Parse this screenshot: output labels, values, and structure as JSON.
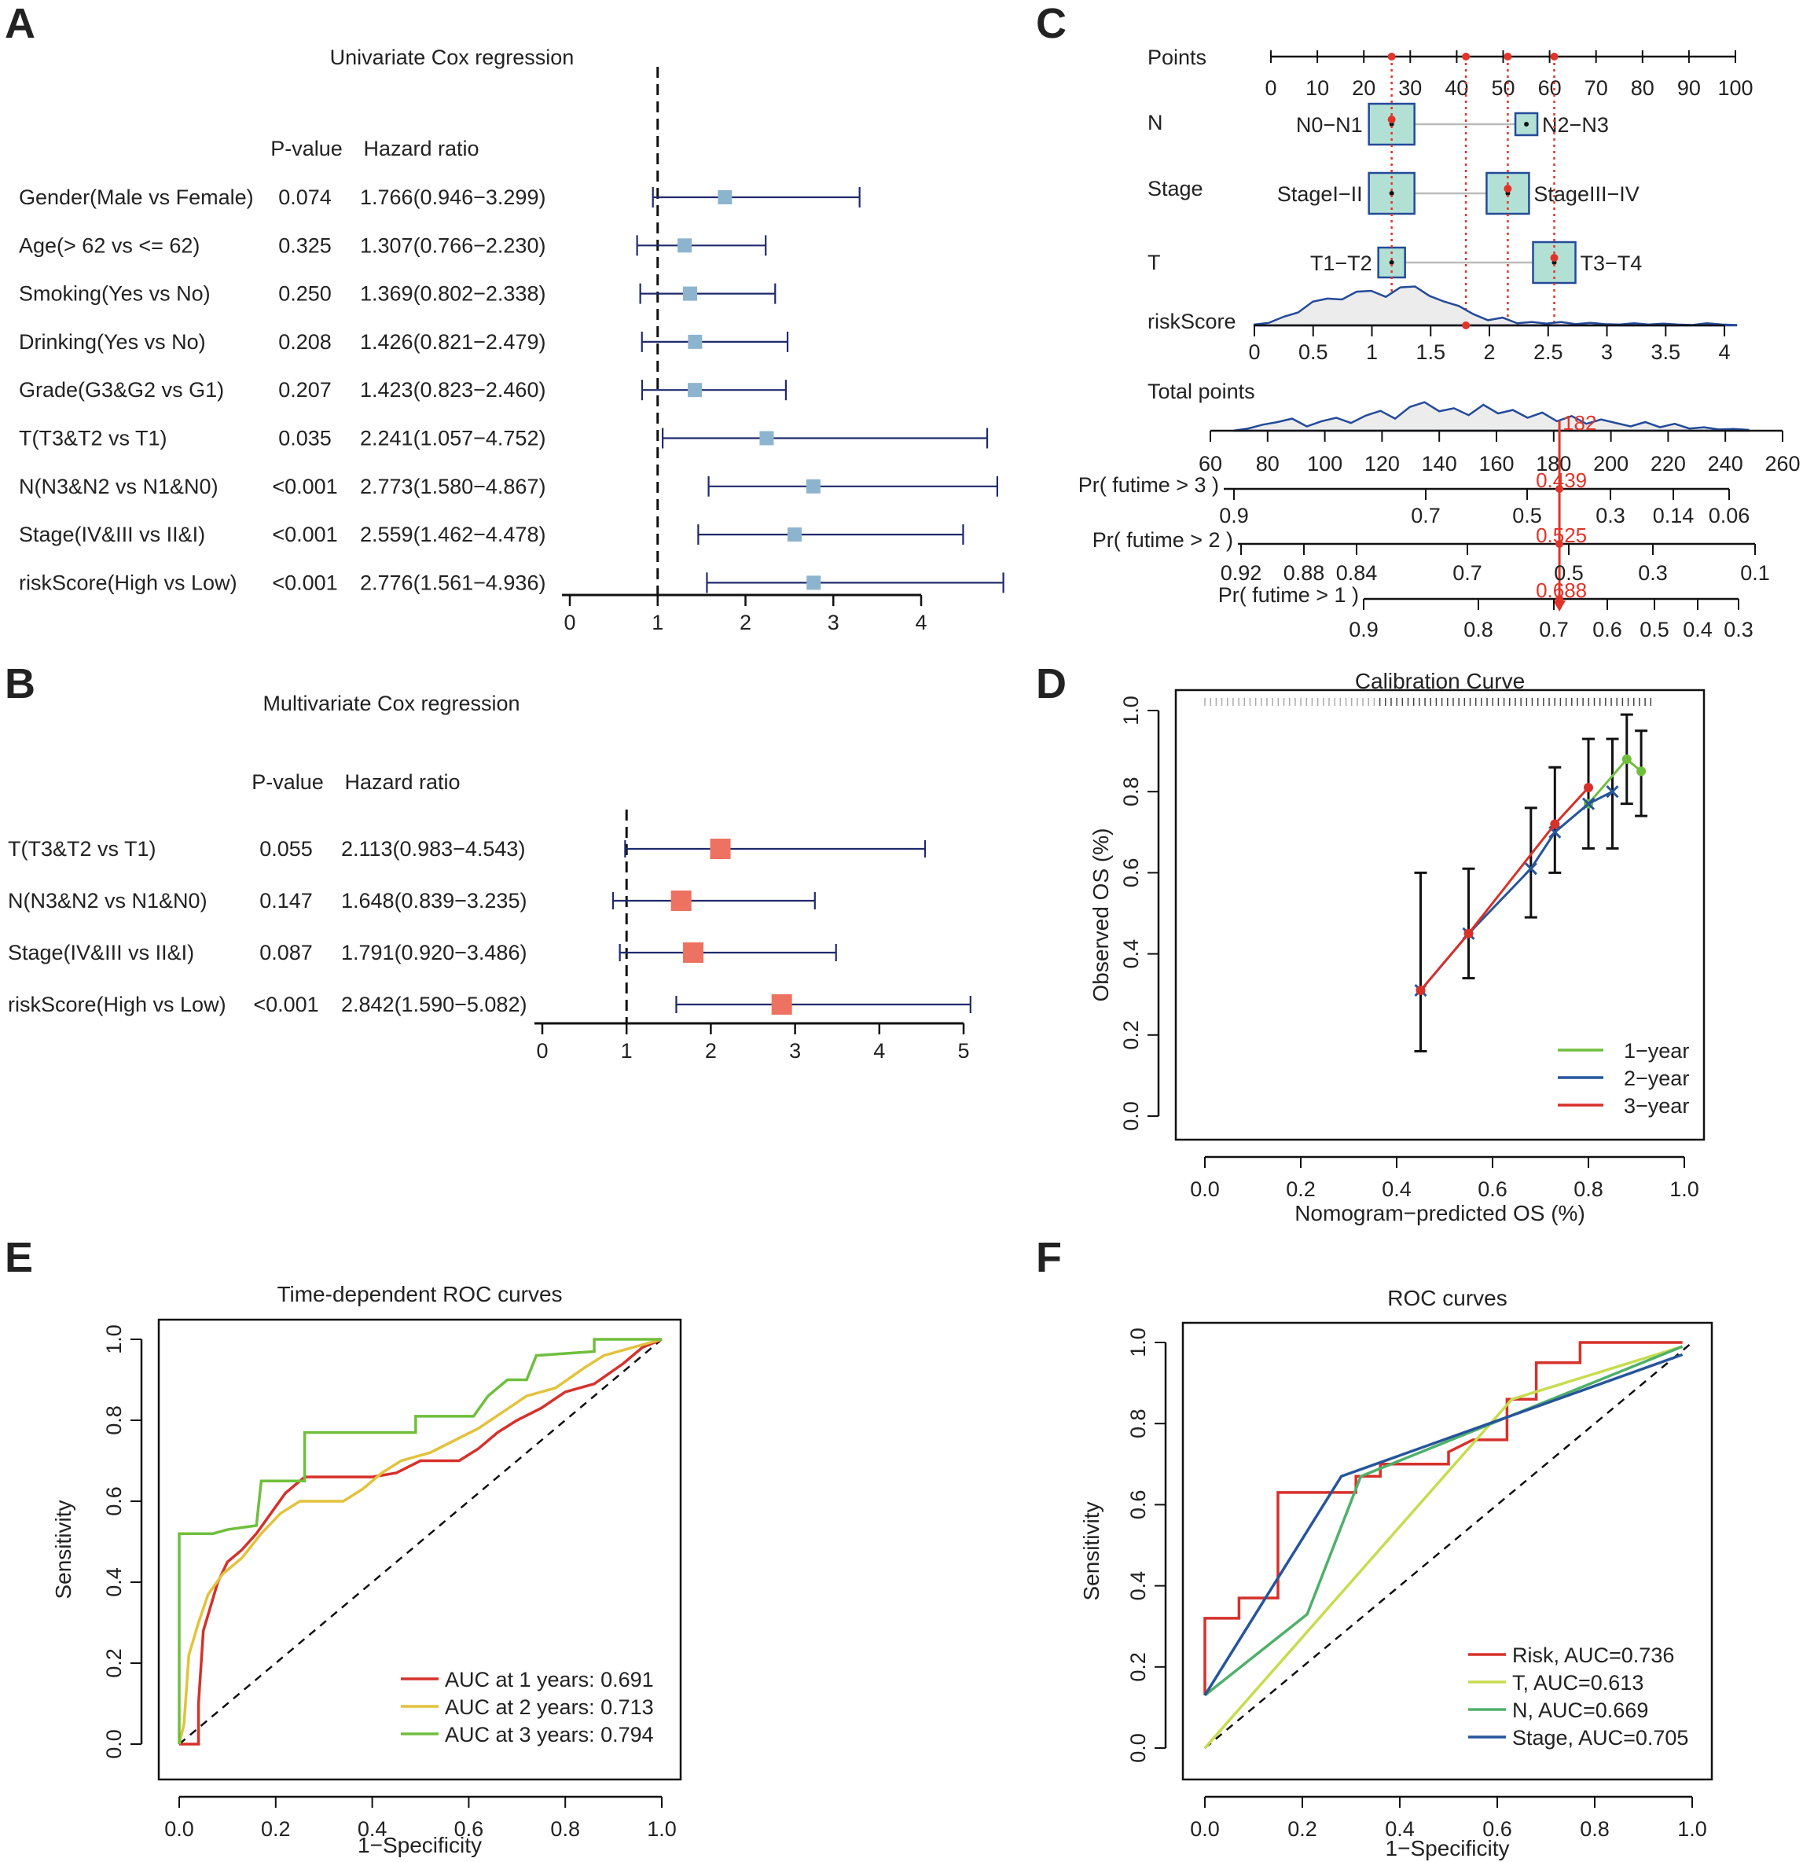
{
  "figure": {
    "panel_labels": [
      "A",
      "B",
      "C",
      "D",
      "E",
      "F"
    ]
  },
  "chart_data": [
    {
      "panel": "A",
      "type": "forest",
      "title": "Univariate Cox regression",
      "col_headers": [
        "P-value",
        "Hazard ratio"
      ],
      "marker_color": "#8db4cf",
      "line_color": "#1f2a6b",
      "xlim": [
        0,
        4
      ],
      "xticks": [
        0,
        1,
        2,
        3,
        4
      ],
      "ref_line": 1,
      "rows": [
        {
          "label": "Gender(Male vs Female)",
          "p": "0.074",
          "hr_text": "1.766(0.946−3.299)",
          "hr": 1.766,
          "lo": 0.946,
          "hi": 3.299
        },
        {
          "label": "Age(> 62 vs <= 62)",
          "p": "0.325",
          "hr_text": "1.307(0.766−2.230)",
          "hr": 1.307,
          "lo": 0.766,
          "hi": 2.23
        },
        {
          "label": "Smoking(Yes vs No)",
          "p": "0.250",
          "hr_text": "1.369(0.802−2.338)",
          "hr": 1.369,
          "lo": 0.802,
          "hi": 2.338
        },
        {
          "label": "Drinking(Yes vs No)",
          "p": "0.208",
          "hr_text": "1.426(0.821−2.479)",
          "hr": 1.426,
          "lo": 0.821,
          "hi": 2.479
        },
        {
          "label": "Grade(G3&G2 vs G1)",
          "p": "0.207",
          "hr_text": "1.423(0.823−2.460)",
          "hr": 1.423,
          "lo": 0.823,
          "hi": 2.46
        },
        {
          "label": "T(T3&T2 vs T1)",
          "p": "0.035",
          "hr_text": "2.241(1.057−4.752)",
          "hr": 2.241,
          "lo": 1.057,
          "hi": 4.752
        },
        {
          "label": "N(N3&N2 vs N1&N0)",
          "p": "<0.001",
          "hr_text": "2.773(1.580−4.867)",
          "hr": 2.773,
          "lo": 1.58,
          "hi": 4.867
        },
        {
          "label": "Stage(IV&III vs II&I)",
          "p": "<0.001",
          "hr_text": "2.559(1.462−4.478)",
          "hr": 2.559,
          "lo": 1.462,
          "hi": 4.478
        },
        {
          "label": "riskScore(High vs Low)",
          "p": "<0.001",
          "hr_text": "2.776(1.561−4.936)",
          "hr": 2.776,
          "lo": 1.561,
          "hi": 4.936
        }
      ]
    },
    {
      "panel": "B",
      "type": "forest",
      "title": "Multivariate Cox regression",
      "col_headers": [
        "P-value",
        "Hazard ratio"
      ],
      "marker_color": "#ee7261",
      "line_color": "#1f2a6b",
      "xlim": [
        0,
        5
      ],
      "xticks": [
        0,
        1,
        2,
        3,
        4,
        5
      ],
      "ref_line": 1,
      "rows": [
        {
          "label": "T(T3&T2 vs T1)",
          "p": "0.055",
          "hr_text": "2.113(0.983−4.543)",
          "hr": 2.113,
          "lo": 0.983,
          "hi": 4.543
        },
        {
          "label": "N(N3&N2 vs N1&N0)",
          "p": "0.147",
          "hr_text": "1.648(0.839−3.235)",
          "hr": 1.648,
          "lo": 0.839,
          "hi": 3.235
        },
        {
          "label": "Stage(IV&III vs II&I)",
          "p": "0.087",
          "hr_text": "1.791(0.920−3.486)",
          "hr": 1.791,
          "lo": 0.92,
          "hi": 3.486
        },
        {
          "label": "riskScore(High vs Low)",
          "p": "<0.001",
          "hr_text": "2.842(1.590−5.082)",
          "hr": 2.842,
          "lo": 1.59,
          "hi": 5.082
        }
      ]
    },
    {
      "panel": "C",
      "type": "nomogram",
      "points_label": "Points",
      "points_ticks": [
        0,
        10,
        20,
        30,
        40,
        50,
        60,
        70,
        80,
        90,
        100
      ],
      "variables": [
        {
          "name": "N",
          "levels": [
            {
              "label": "N0−N1",
              "points": 26
            },
            {
              "label": "N2−N3",
              "points": 55
            }
          ],
          "selected_points": 26
        },
        {
          "name": "Stage",
          "levels": [
            {
              "label": "StageI−II",
              "points": 26
            },
            {
              "label": "StageIII−IV",
              "points": 51
            }
          ],
          "selected_points": 51
        },
        {
          "name": "T",
          "levels": [
            {
              "label": "T1−T2",
              "points": 26
            },
            {
              "label": "T3−T4",
              "points": 61
            }
          ],
          "selected_points": 61
        }
      ],
      "riskscore_label": "riskScore",
      "riskscore_ticks": [
        "0",
        "0.5",
        "1",
        "1.5",
        "2",
        "2.5",
        "3",
        "3.5",
        "4"
      ],
      "riskscore_range": [
        0,
        4.1
      ],
      "riskscore_selected": 1.8,
      "total_label": "Total points",
      "total_ticks": [
        60,
        80,
        100,
        120,
        140,
        160,
        180,
        200,
        220,
        240,
        260
      ],
      "total_value": "182",
      "prob_scales": [
        {
          "label": "Pr( futime > 3 )",
          "ticks": [
            "0.9",
            "0.7",
            "0.5",
            "0.3",
            "0.14",
            "0.06"
          ],
          "value": "0.439"
        },
        {
          "label": "Pr( futime > 2 )",
          "ticks": [
            "0.92",
            "0.88",
            "0.84",
            "0.7",
            "0.5",
            "0.3",
            "0.1"
          ],
          "value": "0.525"
        },
        {
          "label": "Pr( futime > 1 )",
          "ticks": [
            "0.9",
            "0.8",
            "0.7",
            "0.6",
            "0.5",
            "0.4",
            "0.3"
          ],
          "value": "0.688"
        }
      ]
    },
    {
      "panel": "D",
      "type": "calibration",
      "title": "Calibration Curve",
      "xlabel": "Nomogram−predicted OS (%)",
      "ylabel": "Observed OS (%)",
      "xlim": [
        0,
        1
      ],
      "ylim": [
        0,
        1
      ],
      "xticks": [
        "0.0",
        "0.2",
        "0.4",
        "0.6",
        "0.8",
        "1.0"
      ],
      "yticks": [
        "0.0",
        "0.2",
        "0.4",
        "0.6",
        "0.8",
        "1.0"
      ],
      "series": [
        {
          "name": "1−year",
          "color": "#6fbf3d",
          "x": [
            0.8,
            0.88,
            0.91
          ],
          "y": [
            0.77,
            0.88,
            0.85
          ]
        },
        {
          "name": "2−year",
          "color": "#26559b",
          "x": [
            0.45,
            0.55,
            0.68,
            0.73,
            0.8,
            0.85
          ],
          "y": [
            0.31,
            0.45,
            0.61,
            0.7,
            0.77,
            0.8
          ]
        },
        {
          "name": "3−year",
          "color": "#d6312b",
          "x": [
            0.45,
            0.55,
            0.73,
            0.8
          ],
          "y": [
            0.31,
            0.45,
            0.72,
            0.81
          ]
        }
      ],
      "error_bars": [
        {
          "x": 0.45,
          "lo": 0.16,
          "hi": 0.6
        },
        {
          "x": 0.55,
          "lo": 0.34,
          "hi": 0.61
        },
        {
          "x": 0.68,
          "lo": 0.49,
          "hi": 0.76
        },
        {
          "x": 0.73,
          "lo": 0.6,
          "hi": 0.86
        },
        {
          "x": 0.8,
          "lo": 0.66,
          "hi": 0.93
        },
        {
          "x": 0.85,
          "lo": 0.66,
          "hi": 0.93
        },
        {
          "x": 0.88,
          "lo": 0.77,
          "hi": 0.99
        },
        {
          "x": 0.91,
          "lo": 0.74,
          "hi": 0.95
        }
      ]
    },
    {
      "panel": "E",
      "type": "line",
      "title": "Time-dependent ROC curves",
      "xlabel": "1−Specificity",
      "ylabel": "Sensitivity",
      "xlim": [
        0,
        1
      ],
      "ylim": [
        0,
        1
      ],
      "xticks": [
        "0.0",
        "0.2",
        "0.4",
        "0.6",
        "0.8",
        "1.0"
      ],
      "yticks": [
        "0.0",
        "0.2",
        "0.4",
        "0.6",
        "0.8",
        "1.0"
      ],
      "series": [
        {
          "name": "AUC at 1 years: 0.691",
          "color": "#d6312b",
          "points": [
            [
              0,
              0
            ],
            [
              0.04,
              0
            ],
            [
              0.04,
              0.1
            ],
            [
              0.05,
              0.28
            ],
            [
              0.06,
              0.32
            ],
            [
              0.08,
              0.4
            ],
            [
              0.1,
              0.45
            ],
            [
              0.13,
              0.48
            ],
            [
              0.16,
              0.52
            ],
            [
              0.19,
              0.57
            ],
            [
              0.22,
              0.62
            ],
            [
              0.26,
              0.66
            ],
            [
              0.3,
              0.66
            ],
            [
              0.4,
              0.66
            ],
            [
              0.45,
              0.67
            ],
            [
              0.5,
              0.7
            ],
            [
              0.58,
              0.7
            ],
            [
              0.62,
              0.73
            ],
            [
              0.66,
              0.77
            ],
            [
              0.7,
              0.8
            ],
            [
              0.75,
              0.83
            ],
            [
              0.8,
              0.87
            ],
            [
              0.86,
              0.89
            ],
            [
              0.92,
              0.94
            ],
            [
              0.96,
              0.98
            ],
            [
              1,
              1
            ]
          ]
        },
        {
          "name": "AUC at 2 years: 0.713",
          "color": "#e3c23c",
          "points": [
            [
              0,
              0
            ],
            [
              0.01,
              0.05
            ],
            [
              0.02,
              0.22
            ],
            [
              0.04,
              0.3
            ],
            [
              0.06,
              0.37
            ],
            [
              0.09,
              0.42
            ],
            [
              0.13,
              0.46
            ],
            [
              0.17,
              0.52
            ],
            [
              0.21,
              0.57
            ],
            [
              0.25,
              0.6
            ],
            [
              0.34,
              0.6
            ],
            [
              0.38,
              0.63
            ],
            [
              0.42,
              0.67
            ],
            [
              0.46,
              0.7
            ],
            [
              0.52,
              0.72
            ],
            [
              0.57,
              0.75
            ],
            [
              0.62,
              0.78
            ],
            [
              0.67,
              0.82
            ],
            [
              0.72,
              0.86
            ],
            [
              0.78,
              0.88
            ],
            [
              0.84,
              0.93
            ],
            [
              0.88,
              0.96
            ],
            [
              0.94,
              0.98
            ],
            [
              1,
              1
            ]
          ]
        },
        {
          "name": "AUC at 3 years: 0.794",
          "color": "#6fbf3d",
          "points": [
            [
              0,
              0
            ],
            [
              0,
              0.52
            ],
            [
              0.07,
              0.52
            ],
            [
              0.1,
              0.53
            ],
            [
              0.16,
              0.54
            ],
            [
              0.17,
              0.65
            ],
            [
              0.2,
              0.65
            ],
            [
              0.26,
              0.65
            ],
            [
              0.26,
              0.77
            ],
            [
              0.4,
              0.77
            ],
            [
              0.49,
              0.77
            ],
            [
              0.49,
              0.81
            ],
            [
              0.61,
              0.81
            ],
            [
              0.64,
              0.86
            ],
            [
              0.68,
              0.9
            ],
            [
              0.72,
              0.9
            ],
            [
              0.74,
              0.96
            ],
            [
              0.86,
              0.97
            ],
            [
              0.86,
              1.0
            ],
            [
              0.97,
              1.0
            ],
            [
              1,
              1
            ]
          ]
        }
      ]
    },
    {
      "panel": "F",
      "type": "line",
      "title": "ROC curves",
      "xlabel": "1−Specificity",
      "ylabel": "Sensitivity",
      "xlim": [
        0,
        1
      ],
      "ylim": [
        0,
        1
      ],
      "xticks": [
        "0.0",
        "0.2",
        "0.4",
        "0.6",
        "0.8",
        "1.0"
      ],
      "yticks": [
        "0.0",
        "0.2",
        "0.4",
        "0.6",
        "0.8",
        "1.0"
      ],
      "series": [
        {
          "name": "Risk, AUC=0.736",
          "color": "#d6312b",
          "points": [
            [
              0,
              0.13
            ],
            [
              0,
              0.32
            ],
            [
              0.07,
              0.32
            ],
            [
              0.07,
              0.37
            ],
            [
              0.15,
              0.37
            ],
            [
              0.15,
              0.63
            ],
            [
              0.31,
              0.63
            ],
            [
              0.31,
              0.67
            ],
            [
              0.36,
              0.67
            ],
            [
              0.36,
              0.7
            ],
            [
              0.5,
              0.7
            ],
            [
              0.5,
              0.73
            ],
            [
              0.55,
              0.76
            ],
            [
              0.62,
              0.76
            ],
            [
              0.62,
              0.86
            ],
            [
              0.68,
              0.86
            ],
            [
              0.68,
              0.95
            ],
            [
              0.77,
              0.95
            ],
            [
              0.77,
              1.0
            ],
            [
              0.98,
              1.0
            ]
          ]
        },
        {
          "name": "T, AUC=0.613",
          "color": "#c8dc4e",
          "points": [
            [
              0,
              0
            ],
            [
              0.63,
              0.86
            ],
            [
              0.98,
              0.99
            ]
          ]
        },
        {
          "name": "N, AUC=0.669",
          "color": "#4fb06a",
          "points": [
            [
              0,
              0.13
            ],
            [
              0.21,
              0.33
            ],
            [
              0.32,
              0.67
            ],
            [
              0.98,
              0.99
            ]
          ]
        },
        {
          "name": "Stage, AUC=0.705",
          "color": "#26559b",
          "points": [
            [
              0,
              0.13
            ],
            [
              0.28,
              0.67
            ],
            [
              0.98,
              0.97
            ]
          ]
        }
      ]
    }
  ]
}
